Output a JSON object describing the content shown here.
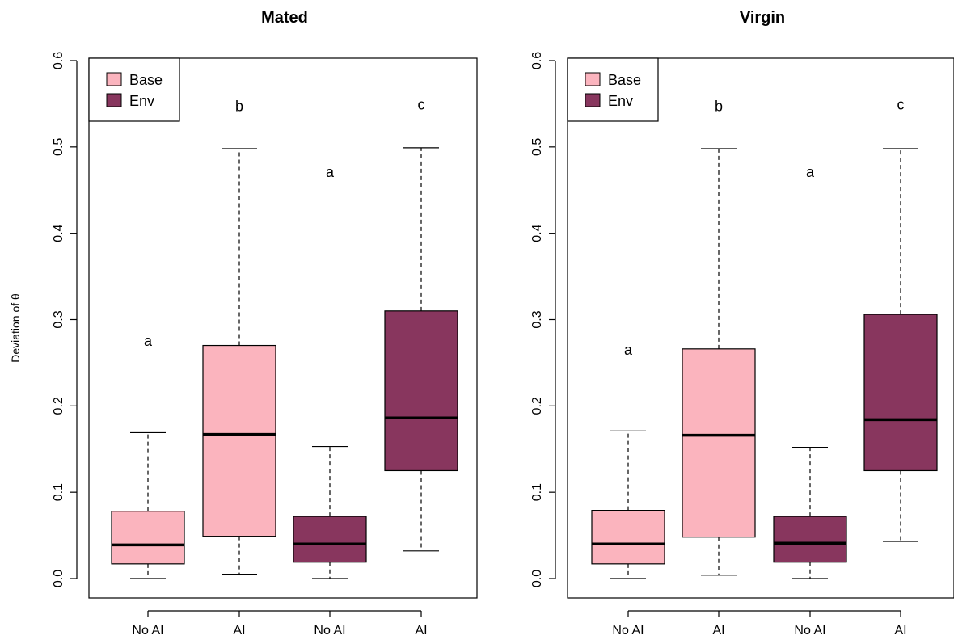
{
  "ylabel": "Deviation of θ",
  "colors": {
    "Base": "#fbb4be",
    "Env": "#88365e"
  },
  "legend": [
    {
      "name": "Base",
      "color": "#fbb4be"
    },
    {
      "name": "Env",
      "color": "#88365e"
    }
  ],
  "chart_data": [
    {
      "type": "box",
      "title": "Mated",
      "ylim": [
        0,
        0.6
      ],
      "yticks": [
        "0.0",
        "0.1",
        "0.2",
        "0.3",
        "0.4",
        "0.5",
        "0.6"
      ],
      "legend_position": "top-left",
      "categories": [
        "No AI",
        "AI",
        "No AI",
        "AI"
      ],
      "groups": [
        "Base",
        "Base",
        "Env",
        "Env"
      ],
      "boxes": [
        {
          "min": 0.0,
          "q1": 0.017,
          "median": 0.039,
          "q3": 0.078,
          "max": 0.169,
          "letter": "a",
          "letter_y": 0.275
        },
        {
          "min": 0.005,
          "q1": 0.049,
          "median": 0.167,
          "q3": 0.27,
          "max": 0.498,
          "letter": "b",
          "letter_y": 0.547
        },
        {
          "min": 0.0,
          "q1": 0.019,
          "median": 0.04,
          "q3": 0.072,
          "max": 0.153,
          "letter": "a",
          "letter_y": 0.471
        },
        {
          "min": 0.032,
          "q1": 0.125,
          "median": 0.186,
          "q3": 0.31,
          "max": 0.499,
          "letter": "c",
          "letter_y": 0.549
        }
      ]
    },
    {
      "type": "box",
      "title": "Virgin",
      "ylim": [
        0,
        0.6
      ],
      "yticks": [
        "0.0",
        "0.1",
        "0.2",
        "0.3",
        "0.4",
        "0.5",
        "0.6"
      ],
      "legend_position": "top-left",
      "categories": [
        "No AI",
        "AI",
        "No AI",
        "AI"
      ],
      "groups": [
        "Base",
        "Base",
        "Env",
        "Env"
      ],
      "boxes": [
        {
          "min": 0.0,
          "q1": 0.017,
          "median": 0.04,
          "q3": 0.079,
          "max": 0.171,
          "letter": "a",
          "letter_y": 0.265
        },
        {
          "min": 0.004,
          "q1": 0.048,
          "median": 0.166,
          "q3": 0.266,
          "max": 0.498,
          "letter": "b",
          "letter_y": 0.547
        },
        {
          "min": 0.0,
          "q1": 0.019,
          "median": 0.041,
          "q3": 0.072,
          "max": 0.152,
          "letter": "a",
          "letter_y": 0.471
        },
        {
          "min": 0.043,
          "q1": 0.125,
          "median": 0.184,
          "q3": 0.306,
          "max": 0.498,
          "letter": "c",
          "letter_y": 0.549
        }
      ]
    }
  ]
}
